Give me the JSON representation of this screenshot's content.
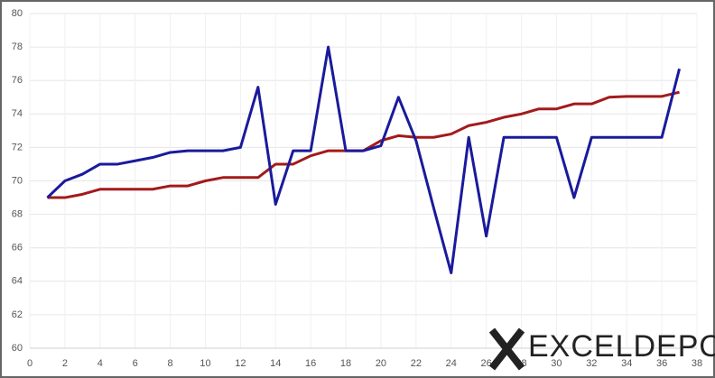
{
  "chart_data": {
    "type": "line",
    "x": [
      1,
      2,
      3,
      4,
      5,
      6,
      7,
      8,
      9,
      10,
      11,
      12,
      13,
      14,
      15,
      16,
      17,
      18,
      19,
      20,
      21,
      22,
      23,
      24,
      25,
      26,
      27,
      28,
      29,
      30,
      31,
      32,
      33,
      34,
      35,
      36,
      37
    ],
    "series": [
      {
        "color": "#a31a1a",
        "values": [
          69,
          69,
          69.2,
          69.5,
          69.5,
          69.5,
          69.5,
          69.7,
          69.7,
          70,
          70.2,
          70.2,
          70.2,
          71,
          71,
          71.5,
          71.8,
          71.8,
          71.8,
          72.4,
          72.7,
          72.6,
          72.6,
          72.8,
          73.3,
          73.5,
          73.8,
          74,
          74.3,
          74.3,
          74.6,
          74.6,
          75,
          75.05,
          75.05,
          75.05,
          75.3
        ]
      },
      {
        "color": "#1a1a9c",
        "values": [
          69,
          70,
          70.4,
          71,
          71,
          71.2,
          71.4,
          71.7,
          71.8,
          71.8,
          71.8,
          72,
          75.6,
          68.6,
          71.8,
          71.8,
          78,
          71.8,
          71.8,
          72.1,
          75,
          72.4,
          68.4,
          64.5,
          72.6,
          66.7,
          72.6,
          72.6,
          72.6,
          72.6,
          69,
          72.6,
          72.6,
          72.6,
          72.6,
          72.6,
          76.7
        ]
      }
    ],
    "xlim": [
      0,
      38
    ],
    "xticks": [
      0,
      2,
      4,
      6,
      8,
      10,
      12,
      14,
      16,
      18,
      20,
      22,
      24,
      26,
      28,
      30,
      32,
      34,
      36,
      38
    ],
    "ylim": [
      60,
      80
    ],
    "yticks": [
      60,
      62,
      64,
      66,
      68,
      70,
      72,
      74,
      76,
      78,
      80
    ],
    "grid": true,
    "watermark": "EXCELDEPO"
  }
}
